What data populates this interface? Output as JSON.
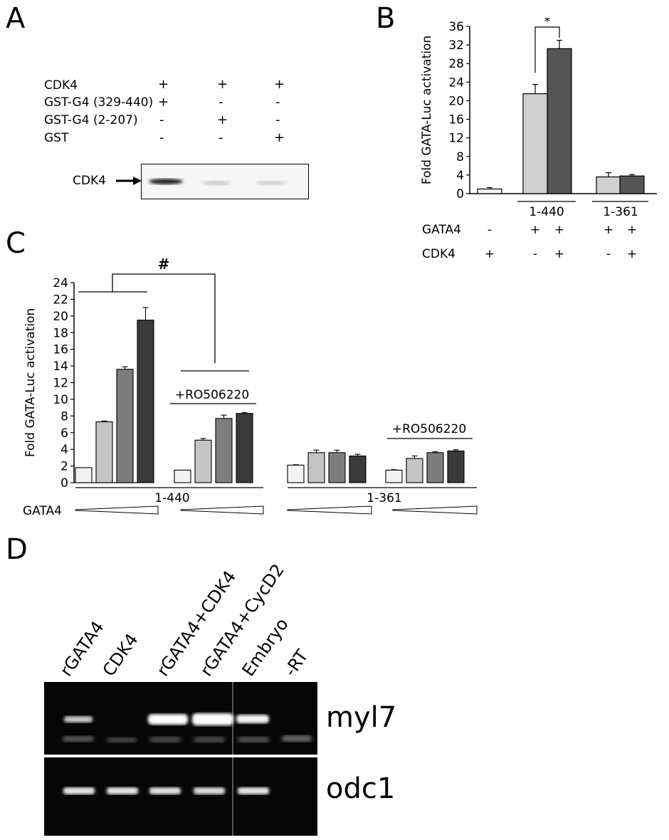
{
  "panel_a": {
    "letter": "A",
    "rows": [
      {
        "label": "CDK4",
        "marks": [
          "+",
          "+",
          "+"
        ]
      },
      {
        "label": "GST-G4 (329-440)",
        "marks": [
          "+",
          "-",
          "-"
        ]
      },
      {
        "label": "GST-G4 (2-207)",
        "marks": [
          "-",
          "+",
          "-"
        ]
      },
      {
        "label": "GST",
        "marks": [
          "-",
          "-",
          "+"
        ]
      }
    ],
    "blot_label": "CDK4"
  },
  "panel_b": {
    "letter": "B",
    "significance": "*",
    "group_labels": [
      "1-440",
      "1-361"
    ],
    "row_labels": [
      "GATA4",
      "CDK4"
    ],
    "gata4_marks": [
      "-",
      "+",
      "+",
      "+",
      "+"
    ],
    "cdk4_marks": [
      "+",
      "-",
      "+",
      "-",
      "+"
    ]
  },
  "panel_c": {
    "letter": "C",
    "significance": "#",
    "inhibitor_label": "+RO506220",
    "group_labels": [
      "1-440",
      "1-361"
    ],
    "dose_label": "GATA4"
  },
  "panel_d": {
    "letter": "D",
    "lanes": [
      "rGATA4",
      "CDK4",
      "rGATA4+CDK4",
      "rGATA4+CycD2",
      "Embryo",
      "-RT"
    ],
    "genes": [
      "myl7",
      "odc1"
    ]
  },
  "chart_data": [
    {
      "type": "bar",
      "panel": "B",
      "ylabel": "Fold GATA-Luc activation",
      "ylim": [
        0,
        36
      ],
      "yticks": [
        0,
        4,
        8,
        12,
        16,
        20,
        24,
        28,
        32,
        36
      ],
      "categories": [
        "-/+",
        "1-440 +/-",
        "1-440 +/+",
        "1-361 +/-",
        "1-361 +/+"
      ],
      "values": [
        1.0,
        21.5,
        31.2,
        3.6,
        3.8
      ],
      "errors": [
        0.3,
        2.0,
        1.8,
        0.9,
        0.3
      ],
      "colors": [
        "#f2f2f2",
        "#d0d0d0",
        "#555555",
        "#d0d0d0",
        "#555555"
      ]
    },
    {
      "type": "bar",
      "panel": "C",
      "ylabel": "Fold GATA-Luc activation",
      "ylim": [
        0,
        24
      ],
      "yticks": [
        0,
        2,
        4,
        6,
        8,
        10,
        12,
        14,
        16,
        18,
        20,
        22,
        24
      ],
      "groups": [
        {
          "construct": "1-440",
          "inhibitor": false,
          "values": [
            1.8,
            7.3,
            13.6,
            19.5
          ],
          "errors": [
            0,
            0.1,
            0.3,
            1.5
          ]
        },
        {
          "construct": "1-440",
          "inhibitor": true,
          "values": [
            1.5,
            5.1,
            7.7,
            8.3
          ],
          "errors": [
            0,
            0.2,
            0.4,
            0.1
          ]
        },
        {
          "construct": "1-361",
          "inhibitor": false,
          "values": [
            2.1,
            3.6,
            3.6,
            3.2
          ],
          "errors": [
            0.05,
            0.3,
            0.3,
            0.2
          ]
        },
        {
          "construct": "1-361",
          "inhibitor": true,
          "values": [
            1.5,
            2.9,
            3.6,
            3.8
          ],
          "errors": [
            0.05,
            0.3,
            0.1,
            0.15
          ]
        }
      ],
      "colors": [
        "#f2f2f2",
        "#c4c4c4",
        "#7d7d7d",
        "#3a3a3a"
      ]
    }
  ]
}
